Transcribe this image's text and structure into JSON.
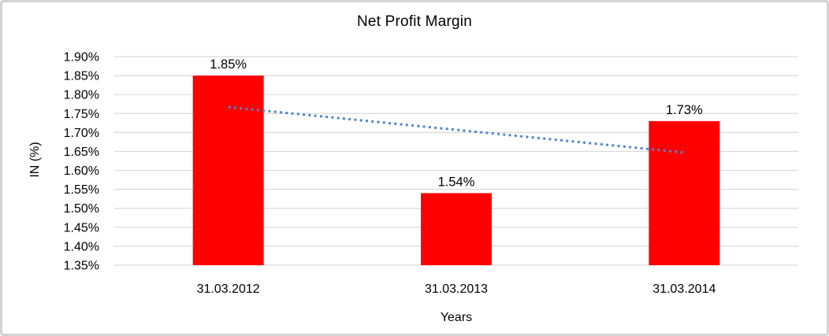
{
  "window": {
    "background_color": "#FFFFFF",
    "border_color": "#D3D3D3"
  },
  "chart_data": {
    "type": "bar",
    "title": "Net Profit Margin",
    "xlabel": "Years",
    "ylabel": "IN (%)",
    "categories": [
      "31.03.2012",
      "31.03.2013",
      "31.03.2014"
    ],
    "values": [
      1.85,
      1.54,
      1.73
    ],
    "data_labels": [
      "1.85%",
      "1.54%",
      "1.73%"
    ],
    "ylim": [
      1.35,
      1.9
    ],
    "ytick_step": 0.05,
    "ytick_labels": [
      "1.90%",
      "1.85%",
      "1.80%",
      "1.75%",
      "1.70%",
      "1.65%",
      "1.60%",
      "1.55%",
      "1.50%",
      "1.45%",
      "1.40%",
      "1.35%"
    ],
    "grid": true,
    "legend": false,
    "bar_color": "#FF0000",
    "gridline_color": "#D9D9D9",
    "trendline": {
      "type": "linear",
      "style": "dotted",
      "color": "#4F86C6",
      "start_value": 1.767,
      "end_value": 1.647
    }
  }
}
